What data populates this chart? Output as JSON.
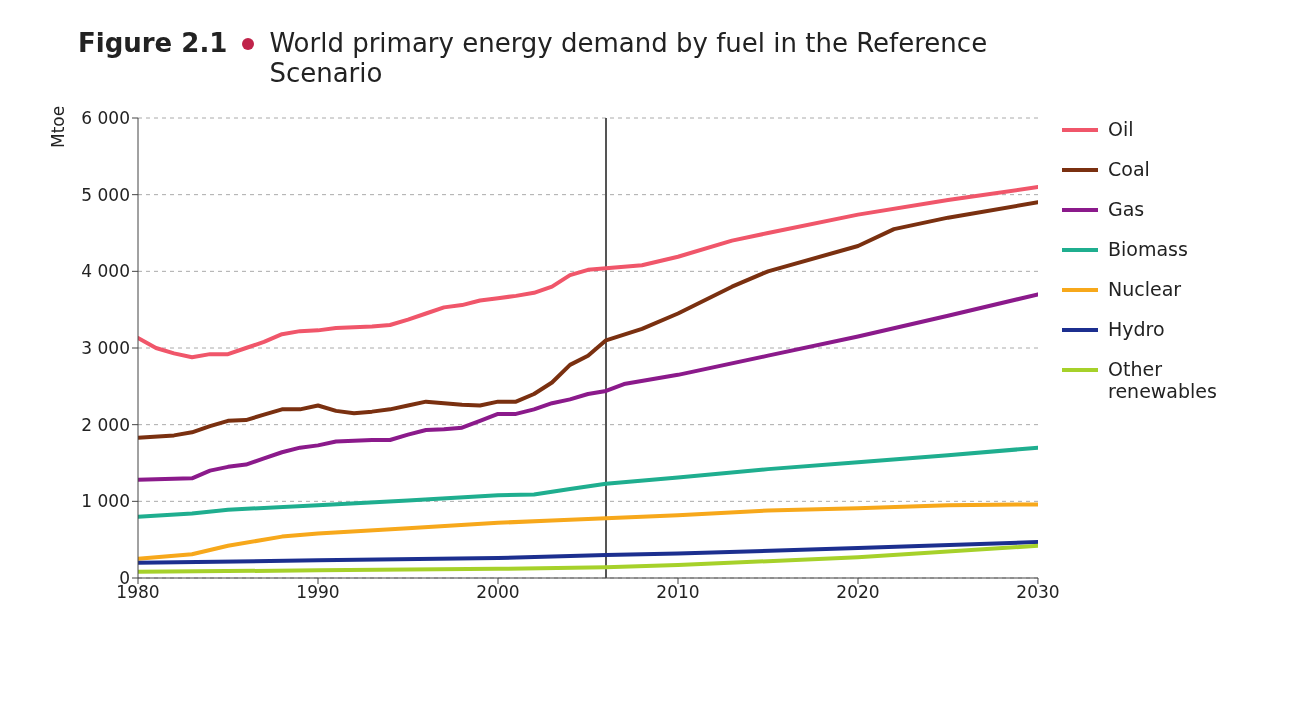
{
  "chart_data": {
    "type": "line",
    "title": "Figure 2.1",
    "subtitle": "World primary energy demand by fuel in the Reference Scenario",
    "ylabel": "Mtoe",
    "xlim": [
      1980,
      2030
    ],
    "xticks": [
      1980,
      1990,
      2000,
      2010,
      2020,
      2030
    ],
    "ylim": [
      0,
      6000
    ],
    "yticks": [
      0,
      {
        "value": 1000,
        "label": "1 000"
      },
      {
        "value": 2000,
        "label": "2 000"
      },
      {
        "value": 3000,
        "label": "3 000"
      },
      {
        "value": 4000,
        "label": "4 000"
      },
      {
        "value": 5000,
        "label": "5 000"
      },
      {
        "value": 6000,
        "label": "6 000"
      }
    ],
    "grid": "y",
    "legend": "right",
    "marker": "none",
    "line_style": "solid",
    "ref_lines": [
      {
        "axis": "x",
        "value": 2006,
        "color": "#555555"
      }
    ],
    "series": [
      {
        "name": "Oil",
        "color": "#f0566a",
        "x": [
          1980,
          1981,
          1982,
          1983,
          1984,
          1985,
          1986,
          1987,
          1988,
          1989,
          1990,
          1991,
          1992,
          1993,
          1994,
          1995,
          1996,
          1997,
          1998,
          1999,
          2000,
          2001,
          2002,
          2003,
          2004,
          2005,
          2006,
          2008,
          2010,
          2013,
          2015,
          2020,
          2025,
          2030
        ],
        "values": [
          3130,
          3000,
          2930,
          2880,
          2920,
          2920,
          3000,
          3080,
          3180,
          3220,
          3230,
          3260,
          3270,
          3280,
          3300,
          3370,
          3450,
          3530,
          3560,
          3620,
          3650,
          3680,
          3720,
          3800,
          3950,
          4020,
          4040,
          4080,
          4190,
          4400,
          4500,
          4740,
          4930,
          5100
        ]
      },
      {
        "name": "Coal",
        "color": "#7a3010",
        "x": [
          1980,
          1982,
          1983,
          1984,
          1985,
          1986,
          1987,
          1988,
          1989,
          1990,
          1991,
          1992,
          1993,
          1994,
          1995,
          1996,
          1997,
          1998,
          1999,
          2000,
          2001,
          2002,
          2003,
          2004,
          2005,
          2006,
          2008,
          2010,
          2013,
          2015,
          2020,
          2022,
          2025,
          2030
        ],
        "values": [
          1830,
          1860,
          1900,
          1980,
          2050,
          2060,
          2130,
          2200,
          2200,
          2250,
          2180,
          2150,
          2170,
          2200,
          2250,
          2300,
          2280,
          2260,
          2250,
          2300,
          2300,
          2400,
          2550,
          2780,
          2900,
          3100,
          3250,
          3450,
          3800,
          4000,
          4330,
          4550,
          4700,
          4900
        ]
      },
      {
        "name": "Gas",
        "color": "#8b1a8b",
        "x": [
          1980,
          1983,
          1984,
          1985,
          1986,
          1987,
          1988,
          1989,
          1990,
          1991,
          1992,
          1993,
          1994,
          1995,
          1996,
          1997,
          1998,
          1999,
          2000,
          2001,
          2002,
          2003,
          2004,
          2005,
          2006,
          2007,
          2010,
          2015,
          2020,
          2025,
          2030
        ],
        "values": [
          1280,
          1300,
          1400,
          1450,
          1480,
          1560,
          1640,
          1700,
          1730,
          1780,
          1790,
          1800,
          1800,
          1870,
          1930,
          1940,
          1960,
          2050,
          2140,
          2140,
          2200,
          2280,
          2330,
          2400,
          2440,
          2530,
          2650,
          2900,
          3150,
          3420,
          3700
        ]
      },
      {
        "name": "Biomass",
        "color": "#1fae8f",
        "x": [
          1980,
          1983,
          1985,
          1990,
          1995,
          2000,
          2002,
          2004,
          2006,
          2010,
          2015,
          2020,
          2025,
          2030
        ],
        "values": [
          800,
          840,
          890,
          950,
          1010,
          1080,
          1090,
          1160,
          1230,
          1310,
          1420,
          1510,
          1600,
          1700
        ]
      },
      {
        "name": "Nuclear",
        "color": "#f7a81b",
        "x": [
          1980,
          1983,
          1985,
          1988,
          1990,
          1995,
          2000,
          2003,
          2006,
          2010,
          2015,
          2020,
          2025,
          2030
        ],
        "values": [
          250,
          310,
          420,
          540,
          580,
          650,
          720,
          750,
          780,
          820,
          880,
          910,
          950,
          960
        ]
      },
      {
        "name": "Hydro",
        "color": "#1c2f8f",
        "x": [
          1980,
          1990,
          2000,
          2006,
          2010,
          2020,
          2030
        ],
        "values": [
          200,
          230,
          260,
          300,
          320,
          390,
          470
        ]
      },
      {
        "name": "Other renewables",
        "color": "#a6d12a",
        "x": [
          1980,
          1990,
          2000,
          2006,
          2010,
          2020,
          2030
        ],
        "values": [
          80,
          100,
          120,
          140,
          170,
          270,
          420
        ]
      }
    ]
  }
}
